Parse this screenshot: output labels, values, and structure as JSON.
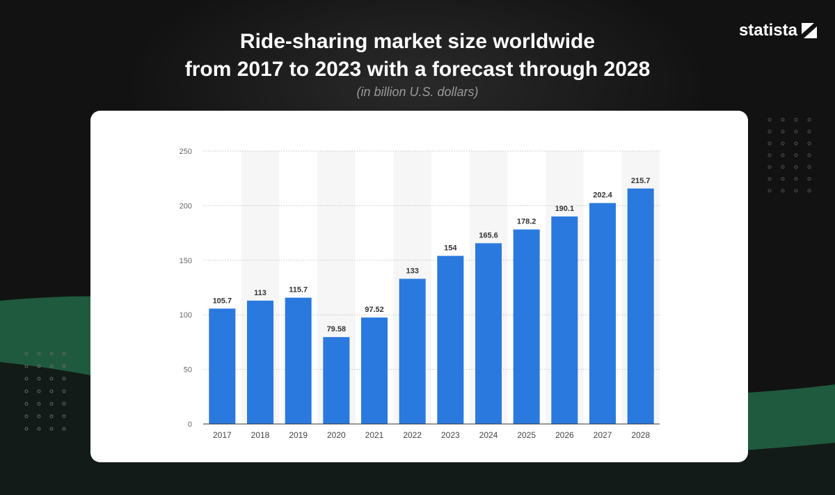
{
  "header": {
    "title_line1": "Ride-sharing market size worldwide",
    "title_line2": "from 2017 to 2023 with a forecast through 2028",
    "subtitle": "(in billion U.S. dollars)",
    "brand": "statista"
  },
  "colors": {
    "bar": "#2a79de",
    "background": "#121212",
    "accent_green": "#1f6b47"
  },
  "chart_data": {
    "type": "bar",
    "title": "Ride-sharing market size worldwide from 2017 to 2023 with a forecast through 2028",
    "subtitle": "(in billion U.S. dollars)",
    "categories": [
      "2017",
      "2018",
      "2019",
      "2020",
      "2021",
      "2022",
      "2023",
      "2024",
      "2025",
      "2026",
      "2027",
      "2028"
    ],
    "values": [
      105.7,
      113,
      115.7,
      79.58,
      97.52,
      133,
      154,
      165.6,
      178.2,
      190.1,
      202.4,
      215.7
    ],
    "value_labels": [
      "105.7",
      "113",
      "115.7",
      "79.58",
      "97.52",
      "133",
      "154",
      "165.6",
      "178.2",
      "190.1",
      "202.4",
      "215.7"
    ],
    "y_ticks": [
      0,
      50,
      100,
      150,
      200,
      250
    ],
    "ylim": [
      0,
      250
    ],
    "xlabel": "",
    "ylabel": "",
    "grid": true,
    "legend": "none"
  }
}
